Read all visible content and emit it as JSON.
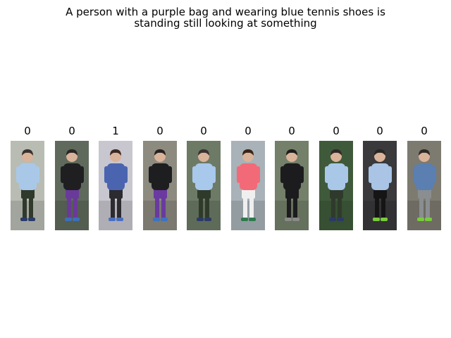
{
  "figure": {
    "title_lines": [
      "A person with a purple bag and wearing blue tennis shoes is",
      "standing still looking at something"
    ]
  },
  "gallery": {
    "images": [
      {
        "label": "0",
        "bg": "#b9bcb3",
        "top": "#a9c8e8",
        "bottom": "#2f3a2c",
        "shoes": "#2a3a6a",
        "hair": "#3a3230"
      },
      {
        "label": "0",
        "bg": "#5f6a5c",
        "top": "#1f1f22",
        "bottom": "#6a3a9a",
        "shoes": "#3d6fb8",
        "hair": "#2a2624"
      },
      {
        "label": "1",
        "bg": "#c8c6cf",
        "top": "#4a64b0",
        "bottom": "#2b2b30",
        "shoes": "#4a6fc0",
        "hair": "#3a2a24"
      },
      {
        "label": "0",
        "bg": "#8d8a80",
        "top": "#1e1e20",
        "bottom": "#6a3aa0",
        "shoes": "#3f72c0",
        "hair": "#252220"
      },
      {
        "label": "0",
        "bg": "#6d7a66",
        "top": "#a8c8ec",
        "bottom": "#2f3a2a",
        "shoes": "#2a3a66",
        "hair": "#3a3230"
      },
      {
        "label": "0",
        "bg": "#a8b2b8",
        "top": "#f26a78",
        "bottom": "#efefef",
        "shoes": "#2d7a4c",
        "hair": "#3a2418"
      },
      {
        "label": "0",
        "bg": "#74806a",
        "top": "#1c1c1e",
        "bottom": "#1c1c1e",
        "shoes": "#8a8a8a",
        "hair": "#1e1c1c"
      },
      {
        "label": "0",
        "bg": "#3f5a3a",
        "top": "#a9c8e8",
        "bottom": "#2f3a2c",
        "shoes": "#2a3a66",
        "hair": "#2e2a28"
      },
      {
        "label": "0",
        "bg": "#3a3a3c",
        "top": "#a9c4e4",
        "bottom": "#151515",
        "shoes": "#7acc3a",
        "hair": "#2a2624"
      },
      {
        "label": "0",
        "bg": "#7d7a70",
        "top": "#5a7fb0",
        "bottom": "#8a8e90",
        "shoes": "#7acc3a",
        "hair": "#2f2a28"
      }
    ]
  }
}
